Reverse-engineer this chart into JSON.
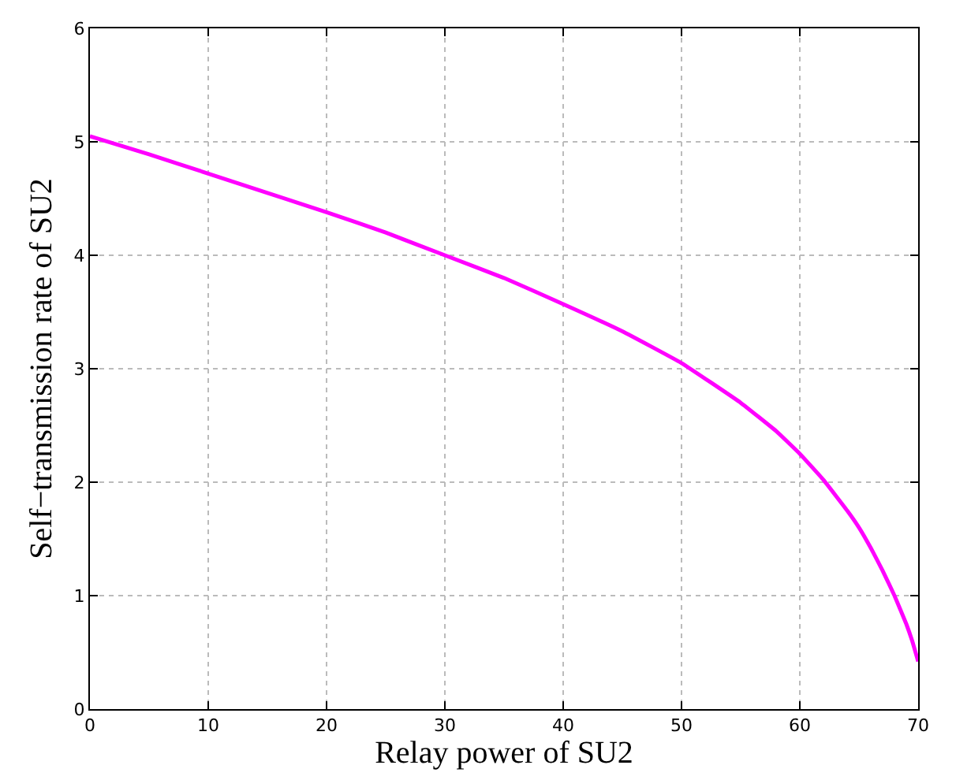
{
  "chart_data": {
    "type": "line",
    "xlabel": "Relay power of SU2",
    "ylabel": "Self−transmission rate of SU2",
    "x": [
      0,
      5,
      10,
      15,
      20,
      25,
      30,
      35,
      40,
      45,
      50,
      55,
      58,
      60,
      62,
      64,
      65,
      66,
      67,
      68,
      69,
      69.5,
      70
    ],
    "series": [
      {
        "color": "#ff00ff",
        "values": [
          5.05,
          4.89,
          4.72,
          4.55,
          4.38,
          4.2,
          4.0,
          3.8,
          3.57,
          3.33,
          3.05,
          2.7,
          2.45,
          2.25,
          2.02,
          1.75,
          1.6,
          1.42,
          1.22,
          1.0,
          0.75,
          0.6,
          0.42
        ]
      }
    ],
    "xlim": [
      0,
      70
    ],
    "ylim": [
      0,
      6
    ],
    "xticks": [
      0,
      10,
      20,
      30,
      40,
      50,
      60,
      70
    ],
    "yticks": [
      0,
      1,
      2,
      3,
      4,
      5,
      6
    ],
    "grid": true,
    "legend": false,
    "marker": "none",
    "line_style": "solid"
  }
}
